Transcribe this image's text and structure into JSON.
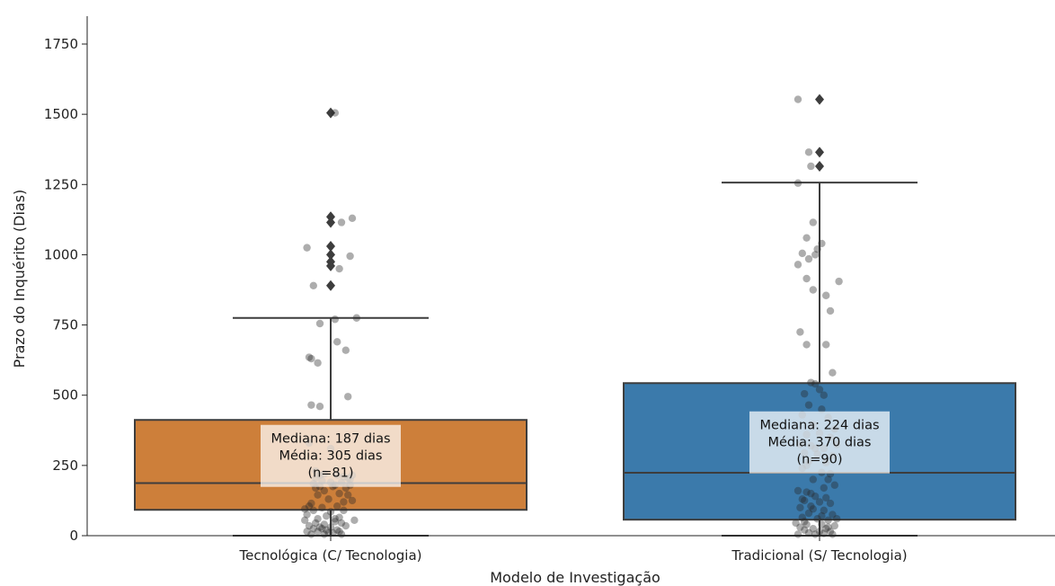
{
  "chart_data": {
    "type": "box",
    "xlabel": "Modelo de Investigação",
    "ylabel": "Prazo do Inquérito (Dias)",
    "ylim": [
      0,
      1850
    ],
    "yticks": [
      0,
      250,
      500,
      750,
      1000,
      1250,
      1500,
      1750
    ],
    "grid": false,
    "categories": [
      "Tecnológica (C/ Tecnologia)",
      "Tradicional (S/ Tecnologia)"
    ],
    "groups": [
      {
        "category": "Tecnológica (C/ Tecnologia)",
        "color": "#cd7f3a",
        "q1": 92,
        "median": 187,
        "q3": 412,
        "whisker_low": 0,
        "whisker_high": 775,
        "outliers": [
          890,
          960,
          975,
          1000,
          1030,
          1115,
          1135,
          1505
        ],
        "annotation": [
          "Mediana: 187 dias",
          "Média: 305 dias",
          "(n=81)"
        ],
        "points": [
          {
            "x": -0.11,
            "y": 1025
          },
          {
            "x": -0.08,
            "y": 890
          },
          {
            "x": -0.1,
            "y": 635
          },
          {
            "x": -0.06,
            "y": 615
          },
          {
            "x": -0.05,
            "y": 755
          },
          {
            "x": 0.02,
            "y": 770
          },
          {
            "x": 0.03,
            "y": 690
          },
          {
            "x": 0.07,
            "y": 660
          },
          {
            "x": 0.12,
            "y": 775
          },
          {
            "x": 0.09,
            "y": 995
          },
          {
            "x": 0.04,
            "y": 950
          },
          {
            "x": 0.05,
            "y": 1115
          },
          {
            "x": 0.1,
            "y": 1130
          },
          {
            "x": 0.02,
            "y": 1505
          },
          {
            "x": -0.09,
            "y": 630
          },
          {
            "x": 0.08,
            "y": 495
          },
          {
            "x": -0.09,
            "y": 465
          },
          {
            "x": -0.05,
            "y": 460
          },
          {
            "x": -0.1,
            "y": 330
          },
          {
            "x": 0.0,
            "y": 310
          },
          {
            "x": -0.07,
            "y": 205
          },
          {
            "x": -0.05,
            "y": 215
          },
          {
            "x": -0.03,
            "y": 220
          },
          {
            "x": 0.03,
            "y": 215
          },
          {
            "x": 0.06,
            "y": 210
          },
          {
            "x": 0.08,
            "y": 205
          },
          {
            "x": 0.1,
            "y": 215
          },
          {
            "x": -0.08,
            "y": 185
          },
          {
            "x": -0.04,
            "y": 195
          },
          {
            "x": 0.0,
            "y": 190
          },
          {
            "x": 0.02,
            "y": 180
          },
          {
            "x": 0.05,
            "y": 190
          },
          {
            "x": 0.09,
            "y": 180
          },
          {
            "x": -0.07,
            "y": 170
          },
          {
            "x": 0.01,
            "y": 175
          },
          {
            "x": 0.07,
            "y": 170
          },
          {
            "x": -0.03,
            "y": 160
          },
          {
            "x": 0.04,
            "y": 150
          },
          {
            "x": 0.08,
            "y": 145
          },
          {
            "x": -0.06,
            "y": 145
          },
          {
            "x": -0.01,
            "y": 130
          },
          {
            "x": 0.1,
            "y": 125
          },
          {
            "x": -0.09,
            "y": 115
          },
          {
            "x": -0.04,
            "y": 100
          },
          {
            "x": 0.03,
            "y": 105
          },
          {
            "x": -0.12,
            "y": 95
          },
          {
            "x": -0.08,
            "y": 90
          },
          {
            "x": 0.0,
            "y": 85
          },
          {
            "x": 0.06,
            "y": 90
          },
          {
            "x": -0.11,
            "y": 75
          },
          {
            "x": -0.02,
            "y": 70
          },
          {
            "x": 0.04,
            "y": 65
          },
          {
            "x": -0.06,
            "y": 60
          },
          {
            "x": -0.12,
            "y": 55
          },
          {
            "x": 0.02,
            "y": 50
          },
          {
            "x": 0.11,
            "y": 55
          },
          {
            "x": -0.07,
            "y": 45
          },
          {
            "x": -0.03,
            "y": 40
          },
          {
            "x": 0.05,
            "y": 45
          },
          {
            "x": -0.1,
            "y": 35
          },
          {
            "x": -0.05,
            "y": 30
          },
          {
            "x": 0.0,
            "y": 30
          },
          {
            "x": 0.07,
            "y": 35
          },
          {
            "x": -0.08,
            "y": 25
          },
          {
            "x": -0.02,
            "y": 20
          },
          {
            "x": 0.03,
            "y": 20
          },
          {
            "x": -0.11,
            "y": 15
          },
          {
            "x": -0.06,
            "y": 15
          },
          {
            "x": 0.01,
            "y": 10
          },
          {
            "x": -0.03,
            "y": 5
          },
          {
            "x": -0.09,
            "y": 5
          },
          {
            "x": 0.05,
            "y": 5
          },
          {
            "x": -0.04,
            "y": 25
          },
          {
            "x": 0.09,
            "y": 200
          },
          {
            "x": -0.05,
            "y": 175
          },
          {
            "x": 0.06,
            "y": 120
          },
          {
            "x": -0.1,
            "y": 105
          },
          {
            "x": 0.02,
            "y": 60
          },
          {
            "x": -0.01,
            "y": 10
          },
          {
            "x": 0.04,
            "y": 15
          },
          {
            "x": -0.07,
            "y": 230
          }
        ]
      },
      {
        "category": "Tradicional (S/ Tecnologia)",
        "color": "#3b7aab",
        "q1": 57,
        "median": 224,
        "q3": 543,
        "whisker_low": 0,
        "whisker_high": 1257,
        "outliers": [
          1315,
          1365,
          1553
        ],
        "annotation": [
          "Mediana: 224 dias",
          "Média: 370 dias",
          "(n=90)"
        ],
        "points": [
          {
            "x": -0.1,
            "y": 1553
          },
          {
            "x": -0.05,
            "y": 1365
          },
          {
            "x": -0.04,
            "y": 1315
          },
          {
            "x": -0.1,
            "y": 1255
          },
          {
            "x": -0.03,
            "y": 1115
          },
          {
            "x": -0.06,
            "y": 1060
          },
          {
            "x": -0.08,
            "y": 1005
          },
          {
            "x": -0.05,
            "y": 985
          },
          {
            "x": -0.02,
            "y": 1000
          },
          {
            "x": -0.01,
            "y": 1020
          },
          {
            "x": 0.01,
            "y": 1040
          },
          {
            "x": -0.1,
            "y": 965
          },
          {
            "x": -0.06,
            "y": 915
          },
          {
            "x": -0.03,
            "y": 875
          },
          {
            "x": 0.03,
            "y": 855
          },
          {
            "x": 0.09,
            "y": 905
          },
          {
            "x": 0.05,
            "y": 800
          },
          {
            "x": -0.09,
            "y": 725
          },
          {
            "x": -0.06,
            "y": 680
          },
          {
            "x": 0.03,
            "y": 680
          },
          {
            "x": 0.06,
            "y": 580
          },
          {
            "x": -0.04,
            "y": 545
          },
          {
            "x": -0.02,
            "y": 540
          },
          {
            "x": 0.0,
            "y": 520
          },
          {
            "x": -0.07,
            "y": 505
          },
          {
            "x": 0.02,
            "y": 500
          },
          {
            "x": -0.05,
            "y": 465
          },
          {
            "x": 0.01,
            "y": 450
          },
          {
            "x": -0.08,
            "y": 430
          },
          {
            "x": 0.04,
            "y": 420
          },
          {
            "x": -0.03,
            "y": 395
          },
          {
            "x": 0.07,
            "y": 380
          },
          {
            "x": -0.06,
            "y": 360
          },
          {
            "x": 0.0,
            "y": 365
          },
          {
            "x": 0.05,
            "y": 350
          },
          {
            "x": -0.09,
            "y": 325
          },
          {
            "x": -0.04,
            "y": 320
          },
          {
            "x": 0.02,
            "y": 310
          },
          {
            "x": 0.08,
            "y": 325
          },
          {
            "x": -0.07,
            "y": 295
          },
          {
            "x": -0.01,
            "y": 290
          },
          {
            "x": 0.06,
            "y": 285
          },
          {
            "x": -0.05,
            "y": 265
          },
          {
            "x": 0.03,
            "y": 260
          },
          {
            "x": -0.08,
            "y": 240
          },
          {
            "x": 0.01,
            "y": 225
          },
          {
            "x": 0.05,
            "y": 220
          },
          {
            "x": -0.03,
            "y": 200
          },
          {
            "x": 0.07,
            "y": 180
          },
          {
            "x": -0.1,
            "y": 160
          },
          {
            "x": -0.06,
            "y": 155
          },
          {
            "x": -0.04,
            "y": 150
          },
          {
            "x": -0.02,
            "y": 140
          },
          {
            "x": 0.03,
            "y": 135
          },
          {
            "x": -0.07,
            "y": 125
          },
          {
            "x": 0.0,
            "y": 120
          },
          {
            "x": 0.05,
            "y": 115
          },
          {
            "x": -0.09,
            "y": 100
          },
          {
            "x": -0.03,
            "y": 95
          },
          {
            "x": 0.02,
            "y": 90
          },
          {
            "x": -0.05,
            "y": 80
          },
          {
            "x": 0.06,
            "y": 75
          },
          {
            "x": -0.08,
            "y": 65
          },
          {
            "x": -0.01,
            "y": 60
          },
          {
            "x": 0.04,
            "y": 55
          },
          {
            "x": -0.11,
            "y": 45
          },
          {
            "x": -0.06,
            "y": 40
          },
          {
            "x": 0.01,
            "y": 40
          },
          {
            "x": 0.07,
            "y": 35
          },
          {
            "x": -0.09,
            "y": 30
          },
          {
            "x": -0.03,
            "y": 25
          },
          {
            "x": 0.03,
            "y": 25
          },
          {
            "x": -0.07,
            "y": 20
          },
          {
            "x": 0.0,
            "y": 15
          },
          {
            "x": 0.05,
            "y": 15
          },
          {
            "x": -0.05,
            "y": 10
          },
          {
            "x": 0.02,
            "y": 8
          },
          {
            "x": -0.02,
            "y": 5
          },
          {
            "x": 0.06,
            "y": 5
          },
          {
            "x": -0.1,
            "y": 5
          },
          {
            "x": -0.04,
            "y": 105
          },
          {
            "x": 0.04,
            "y": 200
          },
          {
            "x": -0.06,
            "y": 250
          },
          {
            "x": 0.02,
            "y": 170
          },
          {
            "x": -0.08,
            "y": 130
          },
          {
            "x": 0.08,
            "y": 60
          },
          {
            "x": -0.02,
            "y": 310
          },
          {
            "x": 0.01,
            "y": 70
          },
          {
            "x": -0.07,
            "y": 50
          },
          {
            "x": 0.04,
            "y": 30
          }
        ]
      }
    ]
  }
}
